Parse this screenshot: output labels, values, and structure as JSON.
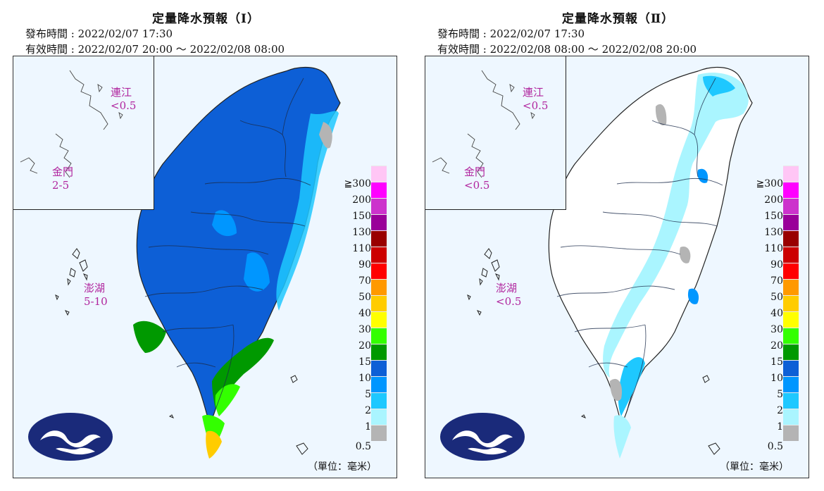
{
  "panels": [
    {
      "title": "定量降水預報（Ⅰ）",
      "issued": "發布時間 : 2022/02/07 17:30",
      "valid": "有效時間 : 2022/02/07 20:00 ～ 2022/02/08 08:00",
      "islands": [
        {
          "name": "連江",
          "value": "<0.5"
        },
        {
          "name": "金門",
          "value": "2-5"
        },
        {
          "name": "澎湖",
          "value": "5-10"
        }
      ]
    },
    {
      "title": "定量降水預報（Ⅱ）",
      "issued": "發布時間 : 2022/02/07 17:30",
      "valid": "有效時間 : 2022/02/08 08:00 ～ 2022/02/08 20:00",
      "islands": [
        {
          "name": "連江",
          "value": "<0.5"
        },
        {
          "name": "金門",
          "value": "<0.5"
        },
        {
          "name": "澎湖",
          "value": "<0.5"
        }
      ]
    }
  ],
  "legend": {
    "labels": [
      "≧300",
      "200",
      "150",
      "130",
      "110",
      "90",
      "70",
      "50",
      "40",
      "30",
      "20",
      "15",
      "10",
      "5",
      "2",
      "1",
      "0.5"
    ],
    "colors": [
      "#ffc6f5",
      "#ff00ff",
      "#cc33cc",
      "#990099",
      "#990000",
      "#cc0000",
      "#ff0000",
      "#ff9900",
      "#ffcc00",
      "#ffff00",
      "#33ff00",
      "#009900",
      "#0d5fd6",
      "#0096ff",
      "#1ec8ff",
      "#aaf5ff",
      "#b4b4b4"
    ],
    "unit": "（單位：毫米）"
  }
}
